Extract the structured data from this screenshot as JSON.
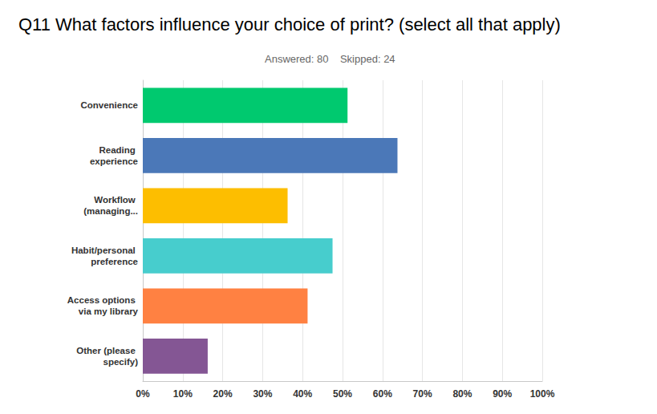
{
  "chart_data": {
    "type": "bar",
    "orientation": "horizontal",
    "title": "Q11 What factors influence your choice of print? (select all that apply)",
    "subtitle": "Answered: 80    Skipped: 24",
    "categories": [
      "Convenience",
      "Reading experience",
      "Workflow (managing...",
      "Habit/personal preference",
      "Access options via my library",
      "Other (please specify)"
    ],
    "values": [
      51.25,
      63.75,
      36.25,
      47.5,
      41.25,
      16.25
    ],
    "colors": [
      "#00c96f",
      "#4b78b8",
      "#fdbe00",
      "#47cdcd",
      "#ff8142",
      "#845694"
    ],
    "xlim": [
      0,
      100
    ],
    "xticks": [
      {
        "value": 0,
        "label": "0%"
      },
      {
        "value": 10,
        "label": "10%"
      },
      {
        "value": 20,
        "label": "20%"
      },
      {
        "value": 30,
        "label": "30%"
      },
      {
        "value": 40,
        "label": "40%"
      },
      {
        "value": 50,
        "label": "50%"
      },
      {
        "value": 60,
        "label": "60%"
      },
      {
        "value": 70,
        "label": "70%"
      },
      {
        "value": 80,
        "label": "80%"
      },
      {
        "value": 90,
        "label": "90%"
      },
      {
        "value": 100,
        "label": "100%"
      }
    ],
    "grid": true
  }
}
